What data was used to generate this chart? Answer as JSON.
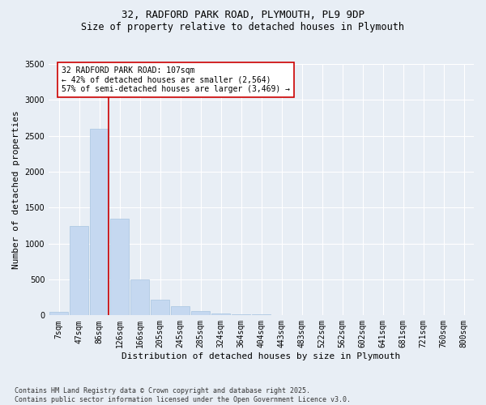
{
  "title_line1": "32, RADFORD PARK ROAD, PLYMOUTH, PL9 9DP",
  "title_line2": "Size of property relative to detached houses in Plymouth",
  "xlabel": "Distribution of detached houses by size in Plymouth",
  "ylabel": "Number of detached properties",
  "categories": [
    "7sqm",
    "47sqm",
    "86sqm",
    "126sqm",
    "166sqm",
    "205sqm",
    "245sqm",
    "285sqm",
    "324sqm",
    "364sqm",
    "404sqm",
    "443sqm",
    "483sqm",
    "522sqm",
    "562sqm",
    "602sqm",
    "641sqm",
    "681sqm",
    "721sqm",
    "760sqm",
    "800sqm"
  ],
  "values": [
    50,
    1240,
    2600,
    1350,
    500,
    220,
    130,
    60,
    30,
    20,
    10,
    5,
    5,
    0,
    0,
    0,
    0,
    0,
    0,
    0,
    0
  ],
  "bar_color": "#c5d8f0",
  "bar_edge_color": "#a8c4e0",
  "vline_color": "#cc0000",
  "annotation_text": "32 RADFORD PARK ROAD: 107sqm\n← 42% of detached houses are smaller (2,564)\n57% of semi-detached houses are larger (3,469) →",
  "annotation_box_color": "#ffffff",
  "annotation_box_edge": "#cc0000",
  "ylim": [
    0,
    3500
  ],
  "yticks": [
    0,
    500,
    1000,
    1500,
    2000,
    2500,
    3000,
    3500
  ],
  "bg_color": "#e8eef5",
  "plot_bg_color": "#e8eef5",
  "footnote": "Contains HM Land Registry data © Crown copyright and database right 2025.\nContains public sector information licensed under the Open Government Licence v3.0.",
  "title_fontsize": 9,
  "subtitle_fontsize": 8.5,
  "axis_label_fontsize": 8,
  "tick_fontsize": 7,
  "annotation_fontsize": 7,
  "footnote_fontsize": 6
}
